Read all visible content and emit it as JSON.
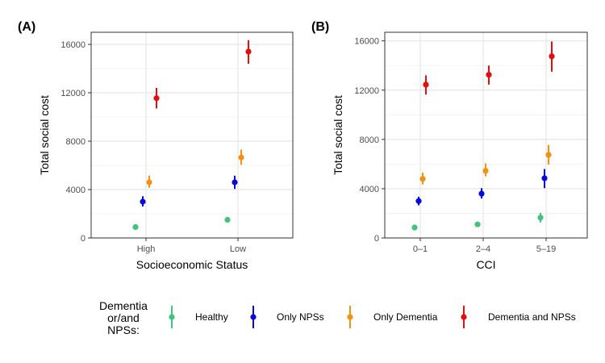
{
  "legend": {
    "title_lines": [
      "Dementia",
      "or/and",
      "NPSs:"
    ],
    "entries": [
      {
        "name": "Healthy",
        "color": "#3ec47c"
      },
      {
        "name": "Only NPSs",
        "color": "#0a0ad8"
      },
      {
        "name": "Only Dementia",
        "color": "#f39110"
      },
      {
        "name": "Dementia and NPSs",
        "color": "#e60d0d"
      }
    ]
  },
  "chart_data": [
    {
      "panel": "(A)",
      "type": "scatter",
      "subtype": "pointrange",
      "xlabel": "Socioeconomic Status",
      "ylabel": "Total social cost",
      "categories": [
        "High",
        "Low"
      ],
      "ylim": [
        0,
        17000
      ],
      "yticks": [
        0,
        4000,
        8000,
        12000,
        16000
      ],
      "grid": true,
      "series": [
        {
          "name": "Healthy",
          "values": [
            900,
            1500
          ],
          "lower": [
            800,
            1350
          ],
          "upper": [
            1000,
            1650
          ]
        },
        {
          "name": "Only NPSs",
          "values": [
            3000,
            4600
          ],
          "lower": [
            2600,
            4050
          ],
          "upper": [
            3450,
            5150
          ]
        },
        {
          "name": "Only Dementia",
          "values": [
            4600,
            6650
          ],
          "lower": [
            4150,
            6050
          ],
          "upper": [
            5150,
            7300
          ]
        },
        {
          "name": "Dementia and NPSs",
          "values": [
            11550,
            15400
          ],
          "lower": [
            10700,
            14400
          ],
          "upper": [
            12400,
            16350
          ]
        }
      ]
    },
    {
      "panel": "(B)",
      "type": "scatter",
      "subtype": "pointrange",
      "xlabel": "CCI",
      "ylabel": "Total social cost",
      "categories": [
        "0–1",
        "2–4",
        "5–19"
      ],
      "ylim": [
        0,
        16700
      ],
      "yticks": [
        0,
        4000,
        8000,
        12000,
        16000
      ],
      "grid": true,
      "series": [
        {
          "name": "Healthy",
          "values": [
            850,
            1100,
            1650
          ],
          "lower": [
            750,
            950,
            1250
          ],
          "upper": [
            950,
            1250,
            2050
          ]
        },
        {
          "name": "Only NPSs",
          "values": [
            3000,
            3600,
            4850
          ],
          "lower": [
            2650,
            3200,
            4050
          ],
          "upper": [
            3350,
            4050,
            5600
          ]
        },
        {
          "name": "Only Dementia",
          "values": [
            4800,
            5450,
            6750
          ],
          "lower": [
            4350,
            5000,
            5950
          ],
          "upper": [
            5300,
            6050,
            7550
          ]
        },
        {
          "name": "Dementia and NPSs",
          "values": [
            12450,
            13250,
            14750
          ],
          "lower": [
            11650,
            12450,
            13500
          ],
          "upper": [
            13200,
            14000,
            15950
          ]
        }
      ]
    }
  ]
}
